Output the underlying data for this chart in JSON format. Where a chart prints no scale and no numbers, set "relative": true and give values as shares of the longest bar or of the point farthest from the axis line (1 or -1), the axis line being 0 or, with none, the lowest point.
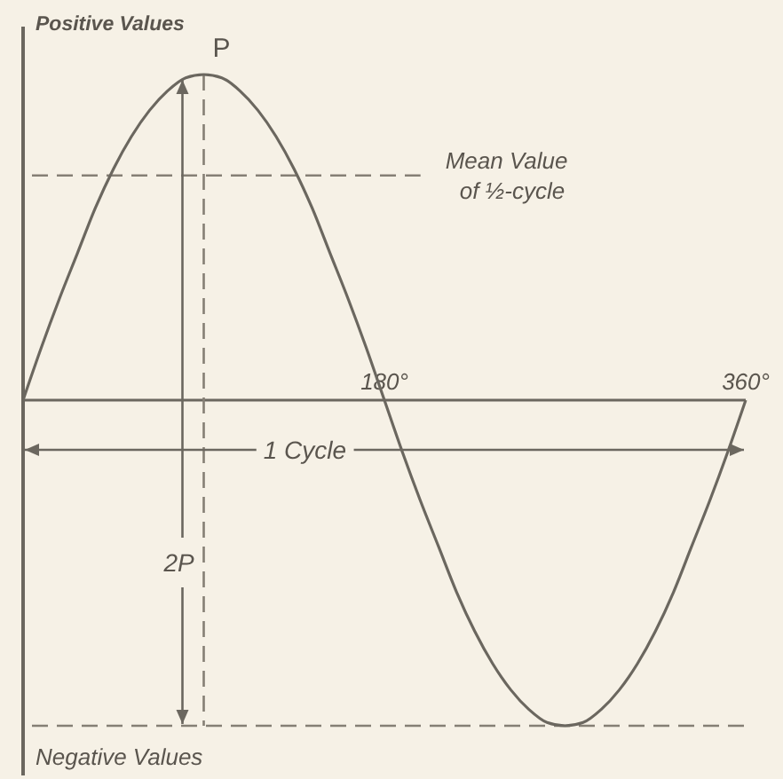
{
  "chart_data": {
    "type": "line",
    "relative": true,
    "x": [
      0,
      9,
      18,
      27,
      36,
      45,
      54,
      63,
      72,
      81,
      90,
      99,
      108,
      117,
      126,
      135,
      144,
      153,
      162,
      171,
      180,
      189,
      198,
      207,
      216,
      225,
      234,
      243,
      252,
      261,
      270,
      279,
      288,
      297,
      306,
      315,
      324,
      333,
      342,
      351,
      360
    ],
    "xlim": [
      0,
      360
    ],
    "xticks": [
      {
        "value": 180,
        "label": "180°"
      },
      {
        "value": 360,
        "label": "360°"
      }
    ],
    "series": [
      {
        "color": "#6b675f",
        "values": [
          0,
          0.16,
          0.31,
          0.45,
          0.59,
          0.71,
          0.81,
          0.89,
          0.95,
          0.99,
          1,
          0.99,
          0.95,
          0.89,
          0.81,
          0.71,
          0.59,
          0.45,
          0.31,
          0.16,
          0,
          -0.16,
          -0.31,
          -0.45,
          -0.59,
          -0.71,
          -0.81,
          -0.89,
          -0.95,
          -0.99,
          -1,
          -0.99,
          -0.95,
          -0.89,
          -0.81,
          -0.71,
          -0.59,
          -0.45,
          -0.31,
          -0.16,
          0
        ]
      }
    ],
    "ref_lines": [
      {
        "axis": "y",
        "value": 0.69,
        "label": "Mean Value of ½-cycle",
        "line_style": "dashed",
        "color": "#857f75"
      },
      {
        "axis": "x",
        "value": 90,
        "line_style": "dashed",
        "color": "#857f75"
      },
      {
        "axis": "y",
        "value": -1,
        "line_style": "dashed",
        "color": "#857f75"
      }
    ],
    "annotations": [
      "Positive Values",
      "Negative Values",
      {
        "text": "P",
        "x": 90,
        "y": 1
      },
      "1 Cycle",
      "2P"
    ]
  }
}
